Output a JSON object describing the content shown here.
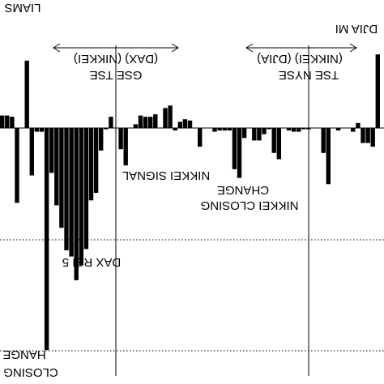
{
  "chart_data": {
    "type": "bar",
    "x": [
      0,
      1,
      2,
      3,
      4,
      5,
      6,
      7,
      8,
      9,
      10,
      11,
      12,
      13,
      14,
      15,
      16,
      17,
      18,
      19,
      20,
      21,
      22,
      23,
      24,
      25,
      26,
      27,
      28,
      29,
      30,
      31,
      32,
      33,
      34,
      35,
      36,
      37,
      38,
      39,
      40,
      41,
      42,
      43,
      44,
      45,
      46,
      47,
      48,
      49,
      50,
      51,
      52,
      53,
      54,
      55,
      56,
      57,
      58,
      59,
      60,
      61,
      62,
      63,
      64,
      65,
      66,
      67,
      68,
      69,
      70,
      71,
      72,
      73,
      74,
      75,
      76
    ],
    "values": [
      10,
      10,
      9,
      -60,
      0,
      54,
      -38,
      -3,
      -3,
      -178,
      -36,
      -62,
      -80,
      -98,
      -103,
      -122,
      -110,
      -97,
      -58,
      -52,
      -18,
      -1,
      9,
      0,
      -17,
      -30,
      0,
      3,
      10,
      9,
      9,
      11,
      0,
      16,
      18,
      -2,
      5,
      7,
      6,
      0,
      -15,
      0,
      0,
      -3,
      -2,
      -2,
      -2,
      -33,
      -40,
      -8,
      0,
      -10,
      -10,
      -5,
      -1,
      -20,
      -25,
      0,
      -2,
      -3,
      -3,
      -1,
      -1,
      0,
      0,
      -20,
      -45,
      0,
      -2,
      0,
      0,
      -3,
      4,
      -12,
      -12,
      -15,
      59
    ],
    "ylim": [
      -200,
      100
    ]
  },
  "labels": {
    "top_left": "LIAMS",
    "top_right": "DJIA MI",
    "bracket_left": "(DAX) (NIKKEI)",
    "bracket_right": "(NIKKEI) (DJIA)",
    "session_left": "GSE TSE",
    "session_right": "TSE NYSE",
    "nikkei_signal": "NIKKEI SIGNAL",
    "change_mid": "CHANGE",
    "nikkei_closing": "NIKKEI CLOSING",
    "dax_rsi": "DAX RSI 5",
    "change_left": "HANGE",
    "closing_left": "CLOSING"
  }
}
